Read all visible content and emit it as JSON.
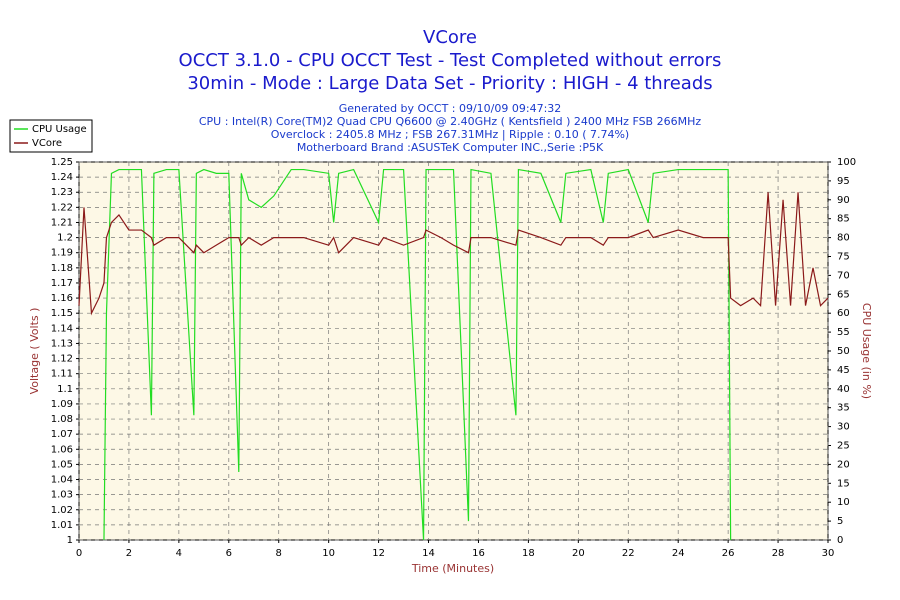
{
  "chart_data": {
    "type": "line",
    "title": "VCore",
    "subtitle": [
      "OCCT 3.1.0 - CPU OCCT Test - Test Completed without errors",
      "30min - Mode : Large Data Set - Priority : HIGH - 4 threads"
    ],
    "info": [
      "Generated by OCCT : 09/10/09 09:47:32",
      "CPU : Intel(R) Core(TM)2 Quad CPU Q6600 @ 2.40GHz ( Kentsfield ) 2400 MHz FSB 266MHz",
      "Overclock : 2405.8 MHz ; FSB 267.31MHz | Ripple : 0.10 ( 7.74%)",
      "Motherboard Brand :ASUSTeK Computer INC.,Serie :P5K"
    ],
    "x_label": "Time (Minutes)",
    "y_label": "Voltage ( Volts )",
    "y2_label": "CPU Usage (in %)",
    "grid": true,
    "x": [
      0,
      0.2,
      0.5,
      0.8,
      1.0,
      1.1,
      1.3,
      1.6,
      2.0,
      2.5,
      2.9,
      3.0,
      3.5,
      4.0,
      4.6,
      4.7,
      5.0,
      5.5,
      6.0,
      6.4,
      6.5,
      6.8,
      7.3,
      7.8,
      8.5,
      9.0,
      10.0,
      10.2,
      10.4,
      11.0,
      12.0,
      12.2,
      13.0,
      13.8,
      13.9,
      14.5,
      15.0,
      15.6,
      15.7,
      16.5,
      17.5,
      17.6,
      18.5,
      19.3,
      19.5,
      20.5,
      21.0,
      21.2,
      22.0,
      22.8,
      23.0,
      24.0,
      25.0,
      26.0,
      26.1,
      26.5,
      27.0,
      27.3,
      27.6,
      27.9,
      28.2,
      28.5,
      28.8,
      29.1,
      29.4,
      29.7,
      30.0
    ],
    "series": [
      {
        "name": "CPU Usage",
        "color": "#22dd22",
        "axis": "y2",
        "values": [
          null,
          null,
          null,
          null,
          0,
          60,
          97,
          98,
          98,
          98,
          33,
          97,
          98,
          98,
          33,
          97,
          98,
          97,
          97,
          18,
          97,
          90,
          88,
          91,
          98,
          98,
          97,
          84,
          97,
          98,
          84,
          98,
          98,
          0,
          98,
          98,
          98,
          5,
          98,
          97,
          33,
          98,
          97,
          84,
          97,
          98,
          84,
          97,
          98,
          84,
          97,
          98,
          98,
          98,
          0,
          null,
          null,
          null,
          null,
          null,
          null,
          null,
          null,
          null,
          null,
          null,
          null
        ]
      },
      {
        "name": "VCore",
        "color": "#8b1a1a",
        "axis": "y",
        "values": [
          1.155,
          1.22,
          1.15,
          1.16,
          1.17,
          1.2,
          1.21,
          1.215,
          1.205,
          1.205,
          1.2,
          1.195,
          1.2,
          1.2,
          1.19,
          1.195,
          1.19,
          1.195,
          1.2,
          1.2,
          1.195,
          1.2,
          1.195,
          1.2,
          1.2,
          1.2,
          1.195,
          1.2,
          1.19,
          1.2,
          1.195,
          1.2,
          1.195,
          1.2,
          1.205,
          1.2,
          1.195,
          1.19,
          1.2,
          1.2,
          1.195,
          1.205,
          1.2,
          1.195,
          1.2,
          1.2,
          1.195,
          1.2,
          1.2,
          1.205,
          1.2,
          1.205,
          1.2,
          1.2,
          1.16,
          1.155,
          1.16,
          1.155,
          1.23,
          1.155,
          1.225,
          1.155,
          1.23,
          1.155,
          1.18,
          1.155,
          1.16
        ]
      }
    ],
    "xlim": [
      0,
      30
    ],
    "xticks": [
      0,
      2,
      4,
      6,
      8,
      10,
      12,
      14,
      16,
      18,
      20,
      22,
      24,
      26,
      28,
      30
    ],
    "ylim": [
      1,
      1.25
    ],
    "yticks": [
      1,
      1.01,
      1.02,
      1.03,
      1.04,
      1.05,
      1.06,
      1.07,
      1.08,
      1.09,
      1.1,
      1.11,
      1.12,
      1.13,
      1.14,
      1.15,
      1.16,
      1.17,
      1.18,
      1.19,
      1.2,
      1.21,
      1.22,
      1.23,
      1.24,
      1.25
    ],
    "y2lim": [
      0,
      100
    ],
    "y2ticks": [
      0,
      5,
      10,
      15,
      20,
      25,
      30,
      35,
      40,
      45,
      50,
      55,
      60,
      65,
      70,
      75,
      80,
      85,
      90,
      95,
      100
    ]
  }
}
